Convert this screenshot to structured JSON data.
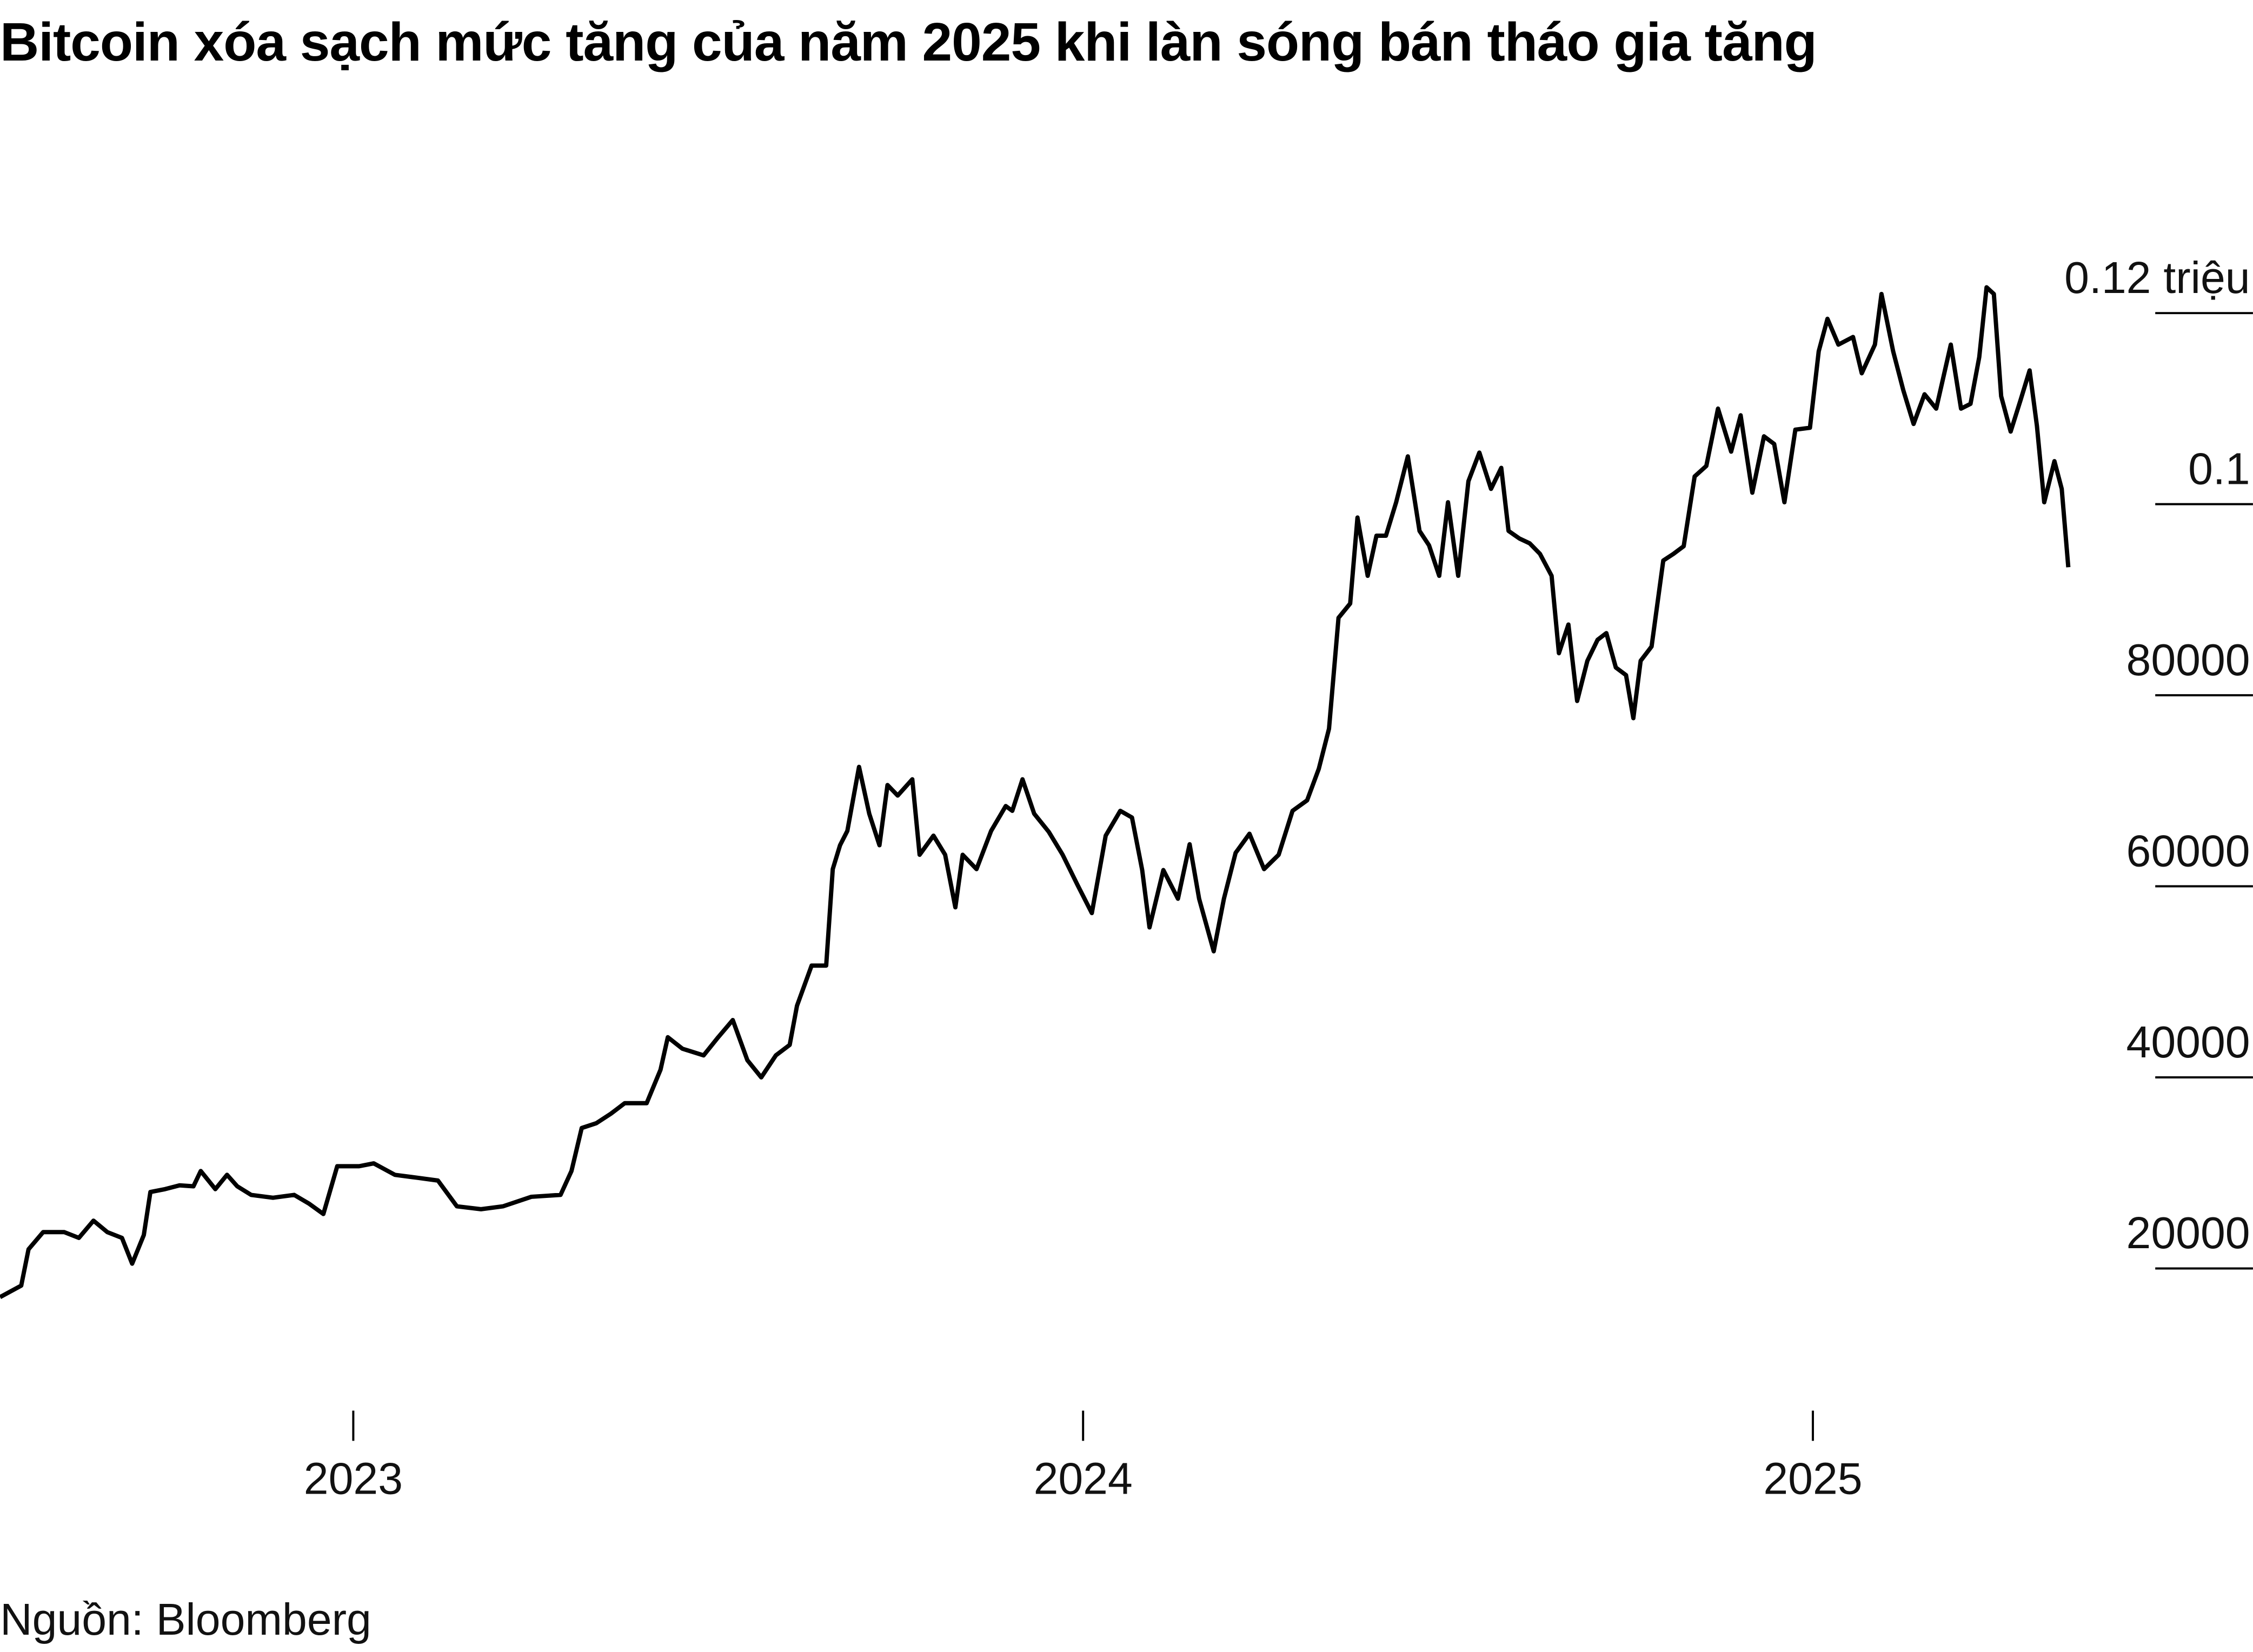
{
  "chart_data": {
    "type": "line",
    "title": "Bitcoin xóa sạch mức tăng của năm 2025 khi làn sóng bán tháo gia tăng",
    "source": "Nguồn: Bloomberg",
    "color": "#000000",
    "x": [
      2022.516,
      2022.545,
      2022.555,
      2022.575,
      2022.604,
      2022.624,
      2022.644,
      2022.663,
      2022.683,
      2022.697,
      2022.713,
      2022.722,
      2022.742,
      2022.762,
      2022.781,
      2022.791,
      2022.811,
      2022.827,
      2022.841,
      2022.86,
      2022.89,
      2022.919,
      2022.939,
      2022.959,
      2022.978,
      2023.008,
      2023.028,
      2023.057,
      2023.087,
      2023.116,
      2023.142,
      2023.175,
      2023.205,
      2023.244,
      2023.284,
      2023.299,
      2023.313,
      2023.333,
      2023.353,
      2023.372,
      2023.402,
      2023.421,
      2023.431,
      2023.451,
      2023.48,
      2023.5,
      2023.52,
      2023.54,
      2023.559,
      2023.579,
      2023.598,
      2023.608,
      2023.628,
      2023.648,
      2023.657,
      2023.667,
      2023.677,
      2023.693,
      2023.707,
      2023.721,
      2023.732,
      2023.746,
      2023.766,
      2023.776,
      2023.795,
      2023.811,
      2023.825,
      2023.835,
      2023.854,
      2023.874,
      2023.894,
      2023.903,
      2023.917,
      2023.933,
      2023.953,
      2023.972,
      2023.992,
      2024.012,
      2024.031,
      2024.051,
      2024.067,
      2024.081,
      2024.091,
      2024.11,
      2024.13,
      2024.146,
      2024.159,
      2024.179,
      2024.193,
      2024.209,
      2024.228,
      2024.248,
      2024.268,
      2024.287,
      2024.307,
      2024.323,
      2024.337,
      2024.35,
      2024.366,
      2024.376,
      2024.39,
      2024.402,
      2024.415,
      2024.429,
      2024.445,
      2024.461,
      2024.474,
      2024.488,
      2024.5,
      2024.514,
      2024.528,
      2024.543,
      2024.559,
      2024.573,
      2024.583,
      2024.598,
      2024.612,
      2024.626,
      2024.642,
      2024.652,
      2024.665,
      2024.677,
      2024.691,
      2024.705,
      2024.717,
      2024.73,
      2024.744,
      2024.754,
      2024.764,
      2024.779,
      2024.795,
      2024.809,
      2024.823,
      2024.838,
      2024.854,
      2024.87,
      2024.888,
      2024.901,
      2024.917,
      2024.933,
      2024.947,
      2024.961,
      2024.976,
      2024.996,
      2025.008,
      2025.02,
      2025.035,
      2025.055,
      2025.067,
      2025.085,
      2025.094,
      2025.11,
      2025.124,
      2025.138,
      2025.153,
      2025.169,
      2025.189,
      2025.203,
      2025.216,
      2025.228,
      2025.238,
      2025.248,
      2025.258,
      2025.271,
      2025.285,
      2025.297,
      2025.307,
      2025.317,
      2025.331,
      2025.341,
      2025.35
    ],
    "values": [
      17000,
      18200,
      22000,
      23800,
      23800,
      23200,
      25000,
      23800,
      23200,
      20500,
      23500,
      28000,
      28300,
      28700,
      28600,
      30200,
      28300,
      29800,
      28600,
      27700,
      27400,
      27700,
      26800,
      25700,
      30700,
      30700,
      31000,
      29800,
      29500,
      29200,
      26500,
      26200,
      26500,
      27500,
      27700,
      30200,
      34700,
      35200,
      36200,
      37300,
      37300,
      40800,
      44200,
      43000,
      42300,
      44200,
      46000,
      41800,
      40000,
      42300,
      43400,
      47500,
      51700,
      51700,
      61800,
      64300,
      65800,
      72500,
      67600,
      64300,
      70600,
      69500,
      71200,
      63300,
      65300,
      63300,
      57800,
      63300,
      61800,
      65800,
      68400,
      67900,
      71200,
      67600,
      65700,
      63300,
      60200,
      57200,
      65300,
      67900,
      67200,
      61700,
      55700,
      61700,
      58700,
      64400,
      58700,
      53200,
      58700,
      63500,
      65500,
      61800,
      63300,
      67900,
      69000,
      72300,
      76500,
      88100,
      89600,
      98600,
      92500,
      96700,
      96700,
      100200,
      105000,
      97200,
      95700,
      92500,
      100200,
      92500,
      102400,
      105400,
      101600,
      103800,
      97200,
      96400,
      95900,
      94800,
      92500,
      84400,
      87400,
      79400,
      83600,
      85800,
      86500,
      82900,
      82100,
      77600,
      83600,
      85100,
      94100,
      94800,
      95600,
      102900,
      104000,
      110000,
      105500,
      109300,
      101200,
      107100,
      106300,
      100200,
      107800,
      108000,
      116000,
      119400,
      116700,
      117500,
      113700,
      116700,
      122000,
      116000,
      111900,
      108400,
      111500,
      110000,
      116700,
      110000,
      110500,
      115400,
      122700,
      122000,
      111300,
      107600,
      111000,
      114000,
      108200,
      100200,
      104500,
      101600,
      93400
    ],
    "xlim": [
      2022.516,
      2025.603
    ],
    "xticks": [
      2023,
      2024,
      2025
    ],
    "ylim": [
      10000,
      125000
    ],
    "yticks": [
      20000,
      40000,
      60000,
      80000,
      {
        "value": 100000,
        "label": "0.1"
      },
      {
        "value": 120000,
        "label": "0.12 triệu"
      }
    ]
  }
}
